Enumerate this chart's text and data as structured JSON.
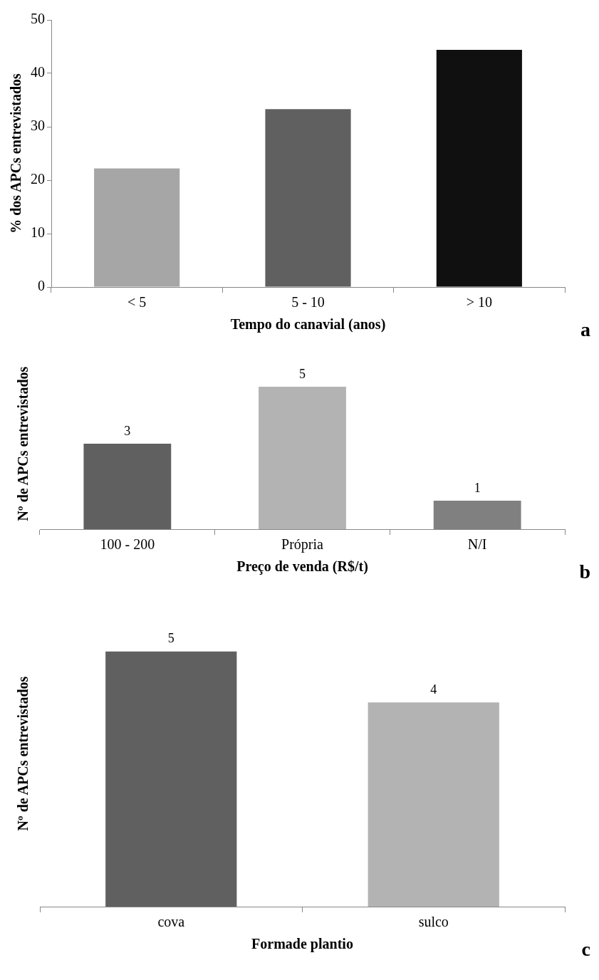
{
  "chart_data": [
    {
      "type": "bar",
      "categories": [
        "< 5",
        "5 - 10",
        "> 10"
      ],
      "values": [
        22.2,
        33.3,
        44.4
      ],
      "colors": [
        "#a6a6a6",
        "#606060",
        "#101010"
      ],
      "ylim": [
        0,
        50
      ],
      "yticks": [
        0,
        10,
        20,
        30,
        40,
        50
      ],
      "xlabel": "Tempo do canavial (anos)",
      "ylabel": "% dos APCs entrevistados",
      "grid": false,
      "legend": false,
      "annotations": [
        "a"
      ]
    },
    {
      "type": "bar",
      "categories": [
        "100 - 200",
        "Própria",
        "N/I"
      ],
      "values": [
        3,
        5,
        1
      ],
      "colors": [
        "#606060",
        "#b3b3b3",
        "#808080"
      ],
      "data_labels": true,
      "tick_labels": "x",
      "xlabel": "Preço de venda (R$/t)",
      "ylabel": "Nº de APCs entrevistados",
      "grid": false,
      "legend": false,
      "annotations": [
        "b"
      ]
    },
    {
      "type": "bar",
      "categories": [
        "cova",
        "sulco"
      ],
      "values": [
        5,
        4
      ],
      "colors": [
        "#606060",
        "#b3b3b3"
      ],
      "data_labels": true,
      "tick_labels": "x",
      "xlabel": "Formade plantio",
      "ylabel": "Nº de APCs entrevistados",
      "grid": false,
      "legend": false,
      "annotations": [
        "c"
      ]
    }
  ]
}
